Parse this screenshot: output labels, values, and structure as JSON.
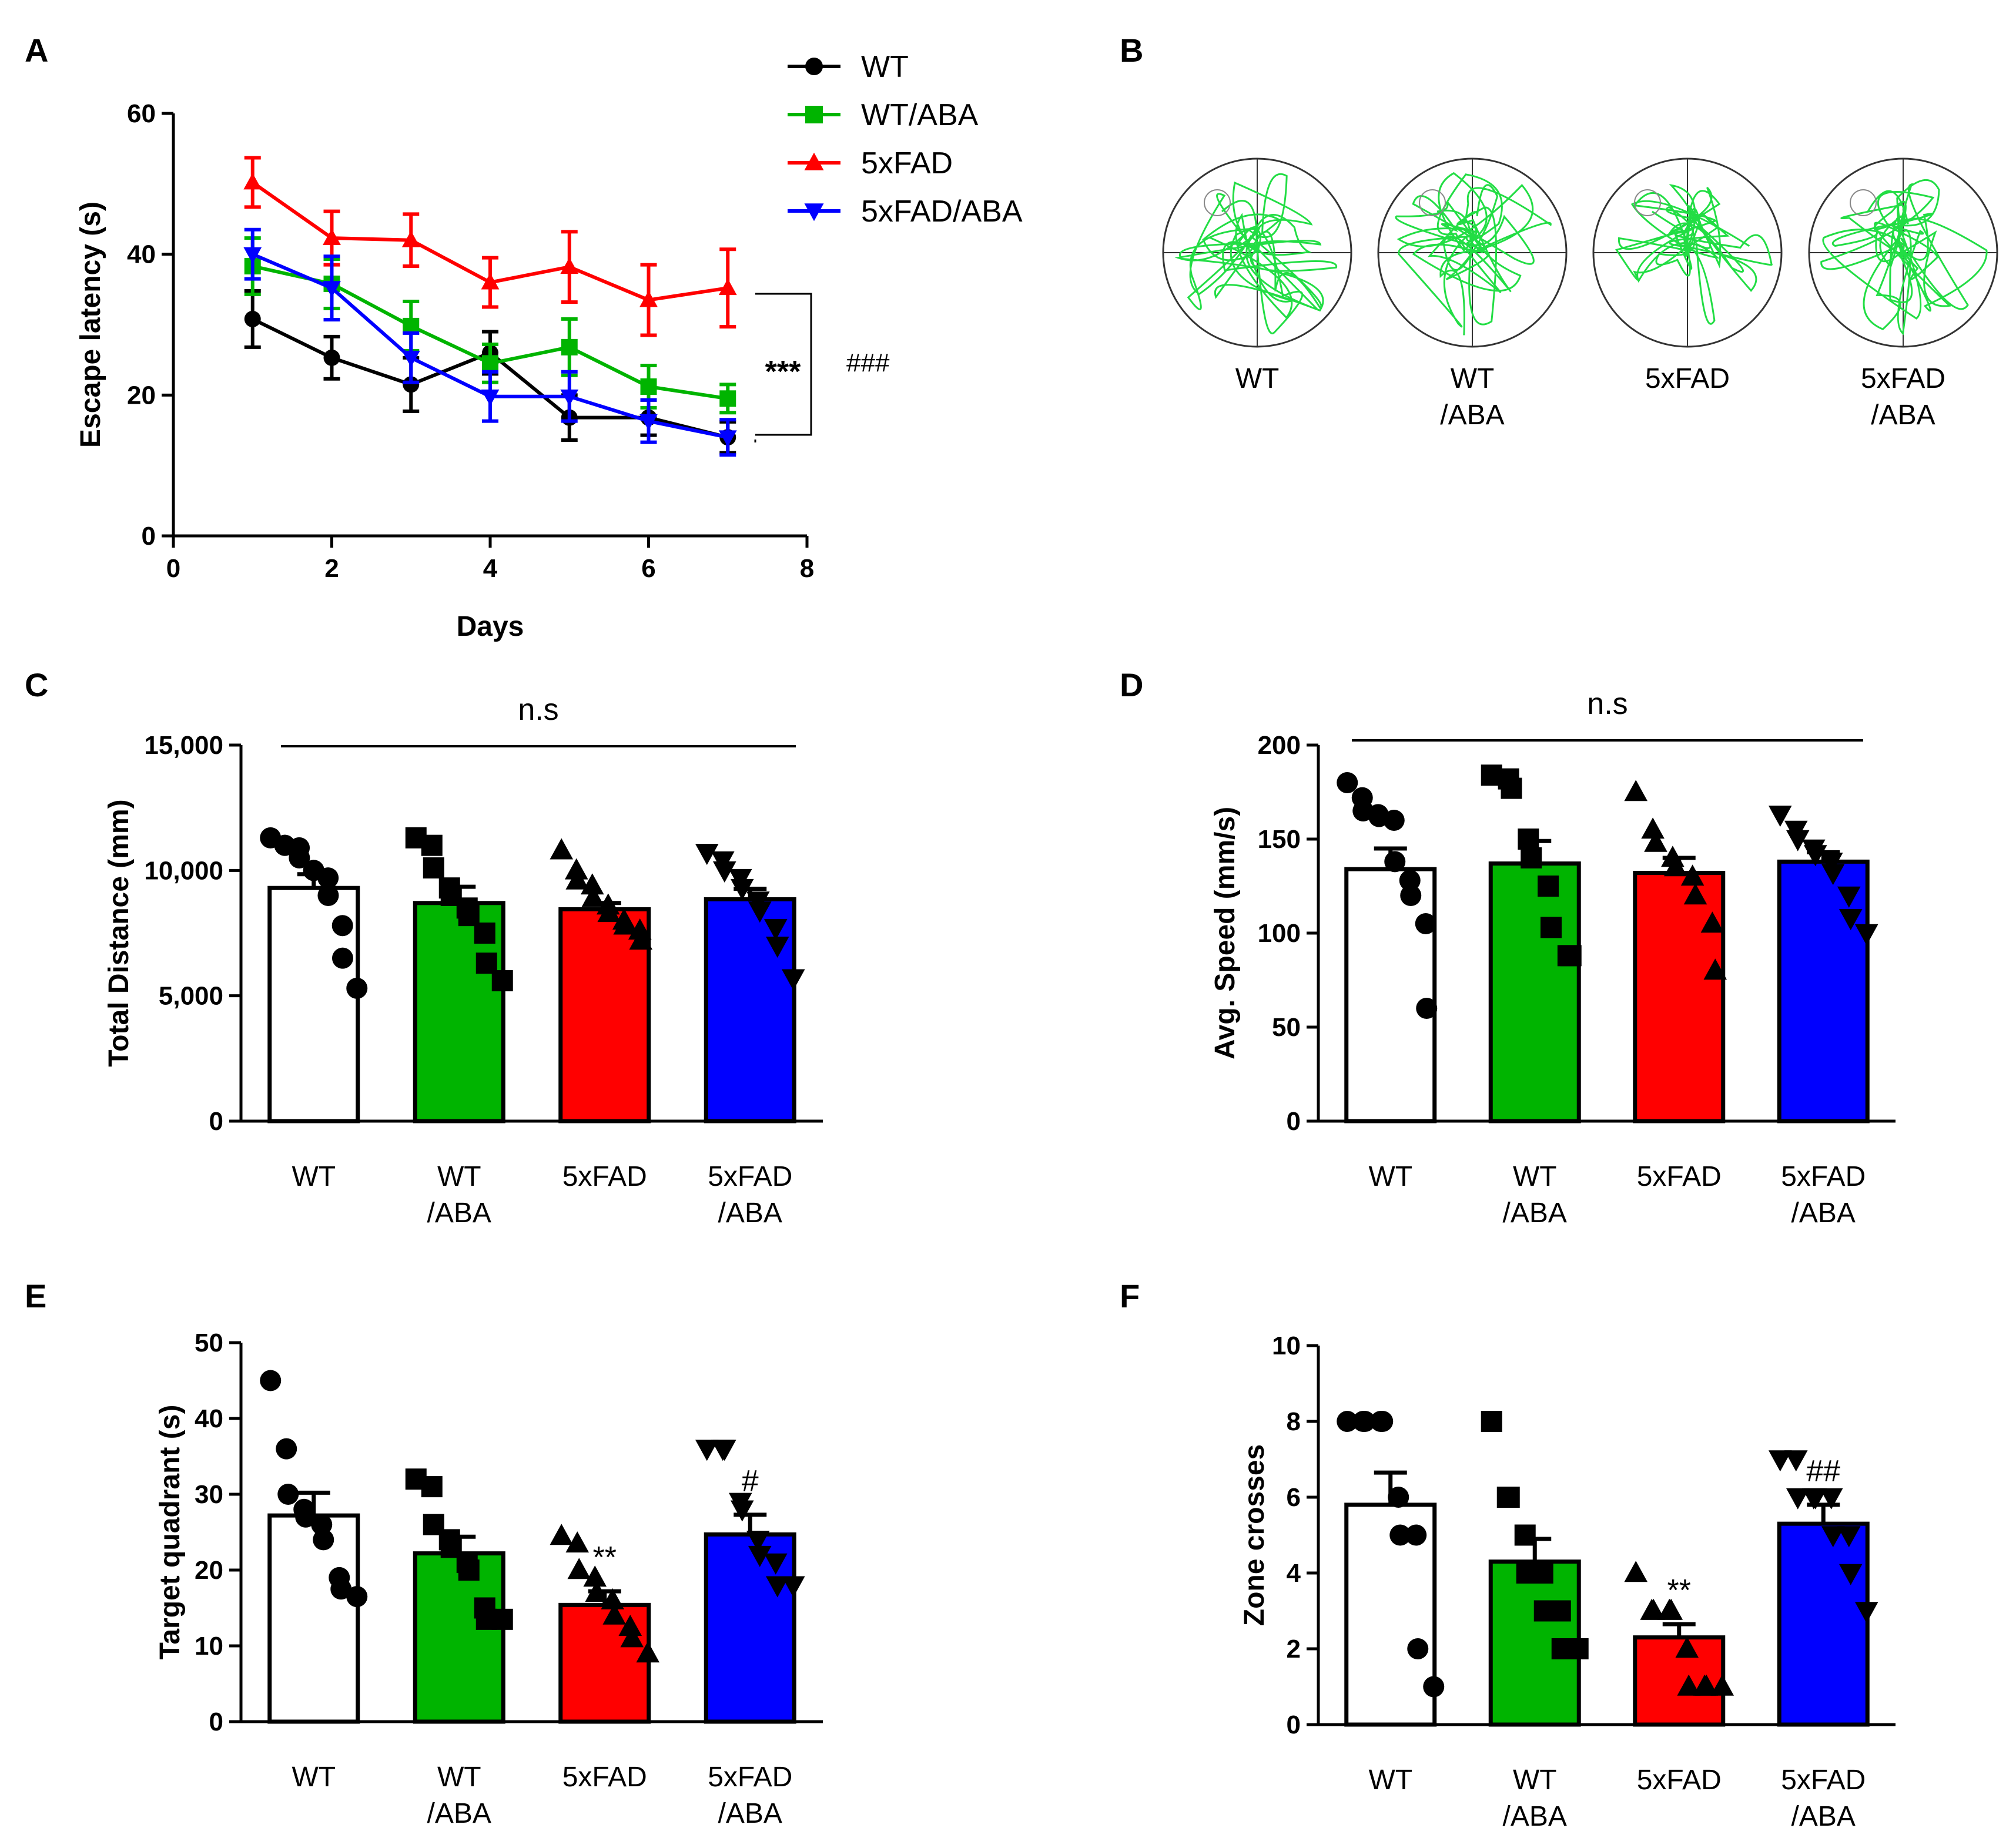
{
  "chart_data": [
    {
      "panel": "A",
      "type": "line",
      "xlabel": "Days",
      "ylabel": "Escape latency (s)",
      "xlim": [
        0,
        8
      ],
      "ylim": [
        0,
        60
      ],
      "xticks": [
        "0",
        "2",
        "4",
        "6",
        "8"
      ],
      "yticks": [
        "0",
        "20",
        "40",
        "60"
      ],
      "x": [
        1,
        2,
        3,
        4,
        5,
        6,
        7
      ],
      "series": [
        {
          "name": "WT",
          "color": "#000000",
          "marker": "circle",
          "values": [
            30.8,
            25.3,
            21.5,
            26.0,
            16.8,
            16.8,
            14.0
          ],
          "errors": [
            4.0,
            3.0,
            3.8,
            3.0,
            3.2,
            2.5,
            2.2
          ]
        },
        {
          "name": "WT/ABA",
          "color": "#00b400",
          "marker": "square",
          "values": [
            38.3,
            35.8,
            29.8,
            24.5,
            26.8,
            21.2,
            19.5
          ],
          "errors": [
            4.0,
            3.5,
            3.5,
            2.7,
            4.0,
            3.0,
            2.0
          ]
        },
        {
          "name": "5xFAD",
          "color": "#ff0000",
          "marker": "triangle-up",
          "values": [
            50.2,
            42.3,
            42.0,
            36.0,
            38.2,
            33.5,
            35.2
          ],
          "errors": [
            3.5,
            3.8,
            3.7,
            3.5,
            5.0,
            5.0,
            5.5
          ]
        },
        {
          "name": "5xFAD/ABA",
          "color": "#0000ff",
          "marker": "triangle-down",
          "values": [
            40.0,
            35.2,
            25.3,
            19.8,
            19.8,
            16.3,
            14.0
          ],
          "errors": [
            3.5,
            4.5,
            3.5,
            3.5,
            3.5,
            3.0,
            2.5
          ]
        }
      ],
      "annotations": [
        "***",
        "###"
      ]
    },
    {
      "panel": "C",
      "type": "bar",
      "ylabel": "Total Distance (mm)",
      "ylim": [
        0,
        15000
      ],
      "yticks": [
        "0",
        "5,000",
        "10,000",
        "15,000"
      ],
      "categories": [
        [
          "WT"
        ],
        [
          "WT",
          "/ABA"
        ],
        [
          "5xFAD"
        ],
        [
          "5xFAD",
          "/ABA"
        ]
      ],
      "colors": [
        "#ffffff",
        "#00b400",
        "#ff0000",
        "#0000ff"
      ],
      "markers": [
        "circle",
        "square",
        "triangle-up",
        "triangle-down"
      ],
      "values": [
        9300,
        8700,
        8450,
        8850
      ],
      "errors": [
        550,
        650,
        250,
        420
      ],
      "points": [
        [
          11300,
          11000,
          11000,
          10900,
          10500,
          10000,
          10000,
          9700,
          9000,
          7800,
          6500,
          5300
        ],
        [
          11300,
          11000,
          10100,
          9300,
          9000,
          8500,
          8200,
          7500,
          6300,
          5600
        ],
        [
          10800,
          10000,
          9600,
          9400,
          8900,
          8600,
          8300,
          8000,
          7800,
          7600,
          7200
        ],
        [
          10700,
          10400,
          10000,
          9700,
          9300,
          8800,
          8400,
          7700,
          7000,
          5700
        ]
      ],
      "annotations": [
        "n.s"
      ]
    },
    {
      "panel": "D",
      "type": "bar",
      "ylabel": "Avg. Speed (mm/s)",
      "ylim": [
        0,
        200
      ],
      "yticks": [
        "0",
        "50",
        "100",
        "150",
        "200"
      ],
      "categories": [
        [
          "WT"
        ],
        [
          "WT",
          "/ABA"
        ],
        [
          "5xFAD"
        ],
        [
          "5xFAD",
          "/ABA"
        ]
      ],
      "colors": [
        "#ffffff",
        "#00b400",
        "#ff0000",
        "#0000ff"
      ],
      "markers": [
        "circle",
        "square",
        "triangle-up",
        "triangle-down"
      ],
      "values": [
        134,
        137,
        132,
        138
      ],
      "errors": [
        11,
        12,
        8,
        5
      ],
      "points": [
        [
          180,
          172,
          165,
          163,
          162,
          160,
          138,
          128,
          120,
          105,
          60
        ],
        [
          184,
          182,
          177,
          150,
          140,
          125,
          103,
          88,
          88
        ],
        [
          175,
          155,
          148,
          140,
          135,
          130,
          120,
          105,
          80
        ],
        [
          163,
          155,
          150,
          145,
          142,
          138,
          132,
          120,
          108,
          100
        ]
      ],
      "annotations": [
        "n.s"
      ]
    },
    {
      "panel": "E",
      "type": "bar",
      "ylabel": "Target quadrant (s)",
      "ylim": [
        0,
        50
      ],
      "yticks": [
        "0",
        "10",
        "20",
        "30",
        "40",
        "50"
      ],
      "categories": [
        [
          "WT"
        ],
        [
          "WT",
          "/ABA"
        ],
        [
          "5xFAD"
        ],
        [
          "5xFAD",
          "/ABA"
        ]
      ],
      "colors": [
        "#ffffff",
        "#00b400",
        "#ff0000",
        "#0000ff"
      ],
      "markers": [
        "circle",
        "square",
        "triangle-up",
        "triangle-down"
      ],
      "values": [
        27.2,
        22.2,
        15.4,
        24.7
      ],
      "errors": [
        3.0,
        2.2,
        1.8,
        2.6
      ],
      "points": [
        [
          45,
          36,
          30,
          28,
          27,
          26,
          24,
          19,
          17.5,
          16.5
        ],
        [
          32,
          31,
          26,
          24,
          23,
          21,
          20,
          15,
          13.5,
          13.5
        ],
        [
          24.5,
          23.5,
          20,
          19,
          17,
          16,
          14,
          12.5,
          11,
          9
        ],
        [
          36,
          36,
          36,
          29,
          28,
          24,
          22,
          21,
          18,
          18
        ]
      ],
      "annotations": [
        "**",
        "#"
      ]
    },
    {
      "panel": "F",
      "type": "bar",
      "ylabel": "Zone crosses",
      "ylim": [
        0,
        10
      ],
      "yticks": [
        "0",
        "2",
        "4",
        "6",
        "8",
        "10"
      ],
      "categories": [
        [
          "WT"
        ],
        [
          "WT",
          "/ABA"
        ],
        [
          "5xFAD"
        ],
        [
          "5xFAD",
          "/ABA"
        ]
      ],
      "colors": [
        "#ffffff",
        "#00b400",
        "#ff0000",
        "#0000ff"
      ],
      "markers": [
        "circle",
        "square",
        "triangle-up",
        "triangle-down"
      ],
      "values": [
        5.8,
        4.3,
        2.3,
        5.3
      ],
      "errors": [
        0.85,
        0.6,
        0.35,
        0.5
      ],
      "points": [
        [
          8,
          8,
          8,
          8,
          8,
          6,
          5,
          5,
          2,
          1
        ],
        [
          8,
          6,
          6,
          5,
          4,
          4,
          3,
          3,
          2,
          2
        ],
        [
          4,
          3,
          3,
          3,
          3,
          2,
          1,
          1,
          1,
          1
        ],
        [
          7,
          7,
          6,
          6,
          6,
          6,
          5,
          5,
          4,
          3
        ]
      ],
      "annotations": [
        "**",
        "##"
      ]
    }
  ],
  "panel_labels": [
    "A",
    "B",
    "C",
    "D",
    "E",
    "F"
  ],
  "trace_panel": {
    "labels": [
      [
        "WT"
      ],
      [
        "WT",
        "/ABA"
      ],
      [
        "5xFAD"
      ],
      [
        "5xFAD",
        "/ABA"
      ]
    ],
    "trace_color": "#22dd44"
  }
}
